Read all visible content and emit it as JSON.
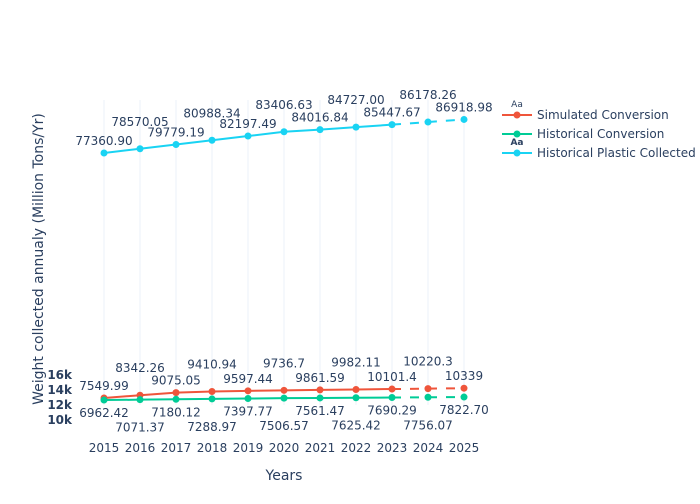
{
  "chart_data": {
    "type": "line",
    "title": "",
    "xlabel": "Years",
    "ylabel": "Weight collected annualy (Million Tons/Yr)",
    "x": [
      "2015",
      "2016",
      "2017",
      "2018",
      "2019",
      "2020",
      "2021",
      "2022",
      "2023",
      "2024",
      "2025"
    ],
    "ylim": [
      5555,
      92464
    ],
    "grid": true,
    "legend_position": "top-right",
    "legend_marker_text": "Aa",
    "y_tick_labels": [
      "10k",
      "12k",
      "14k",
      "16k"
    ],
    "series": [
      {
        "name": "Simulated Conversion",
        "color": "#ef553b",
        "dashed_from": "2023",
        "values": [
          7549.99,
          8342.26,
          9075.05,
          9410.94,
          9597.44,
          9736.7,
          9861.59,
          9982.11,
          10101.4,
          10220.3,
          10339
        ],
        "labels": [
          "7549.99",
          "8342.26",
          "9075.05",
          "9410.94",
          "9597.44",
          "9736.7",
          "9861.59",
          "9982.11",
          "10101.4",
          "10220.3",
          "10339"
        ],
        "label_pos": "above"
      },
      {
        "name": "Historical Conversion",
        "color": "#00cc96",
        "dashed_from": "2023",
        "values": [
          6962.42,
          7071.37,
          7180.12,
          7288.97,
          7397.77,
          7506.57,
          7561.47,
          7625.42,
          7690.29,
          7756.07,
          7822.7
        ],
        "labels": [
          "6962.42",
          "7071.37",
          "7180.12",
          "7288.97",
          "7397.77",
          "7506.57",
          "7561.47",
          "7625.42",
          "7690.29",
          "7756.07",
          "7822.70"
        ],
        "label_pos": "below"
      },
      {
        "name": "Historical Plastic Collected",
        "color": "#19d3f3",
        "dashed_from": "2023",
        "values": [
          77360.9,
          78570.05,
          79779.19,
          80988.34,
          82197.49,
          83406.63,
          84016.84,
          84727.0,
          85447.67,
          86178.26,
          86918.98
        ],
        "labels": [
          "77360.90",
          "78570.05",
          "79779.19",
          "80988.34",
          "82197.49",
          "83406.63",
          "84016.84",
          "84727.00",
          "85447.67",
          "86178.26",
          "86918.98"
        ],
        "label_pos": "above"
      }
    ]
  }
}
